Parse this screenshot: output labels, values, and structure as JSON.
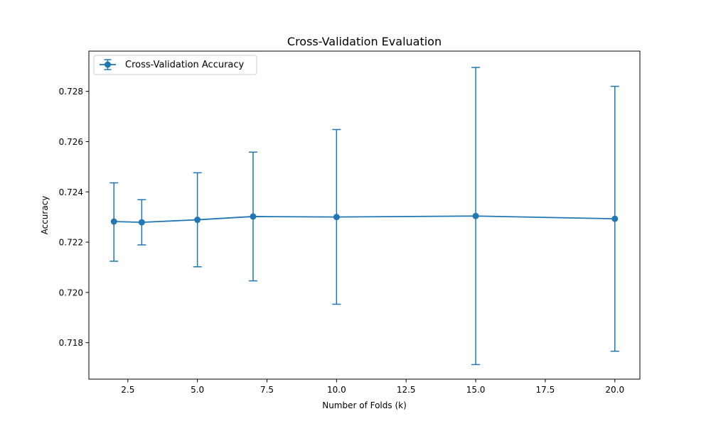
{
  "chart_data": {
    "type": "line",
    "title": "Cross-Validation Evaluation",
    "xlabel": "Number of Folds (k)",
    "ylabel": "Accuracy",
    "xlim": [
      1.1,
      20.9
    ],
    "ylim": [
      0.71655,
      0.7296
    ],
    "xticks": [
      2.5,
      5.0,
      7.5,
      10.0,
      12.5,
      15.0,
      17.5,
      20.0
    ],
    "xtick_labels": [
      "2.5",
      "5.0",
      "7.5",
      "10.0",
      "12.5",
      "15.0",
      "17.5",
      "20.0"
    ],
    "yticks": [
      0.718,
      0.72,
      0.722,
      0.724,
      0.726,
      0.728
    ],
    "ytick_labels": [
      "0.718",
      "0.720",
      "0.722",
      "0.724",
      "0.726",
      "0.728"
    ],
    "grid": false,
    "legend_position": "top-left",
    "series": [
      {
        "name": "Cross-Validation Accuracy",
        "color": "#1f77b4",
        "marker": "circle",
        "x": [
          2,
          3,
          5,
          7,
          10,
          15,
          20
        ],
        "y": [
          0.72282,
          0.72279,
          0.72289,
          0.72302,
          0.723,
          0.72304,
          0.72293
        ],
        "yerr_low": [
          0.72124,
          0.72189,
          0.72102,
          0.72046,
          0.71953,
          0.71713,
          0.71766
        ],
        "yerr_high": [
          0.72436,
          0.72369,
          0.72476,
          0.72558,
          0.72648,
          0.72895,
          0.7282
        ]
      }
    ]
  }
}
